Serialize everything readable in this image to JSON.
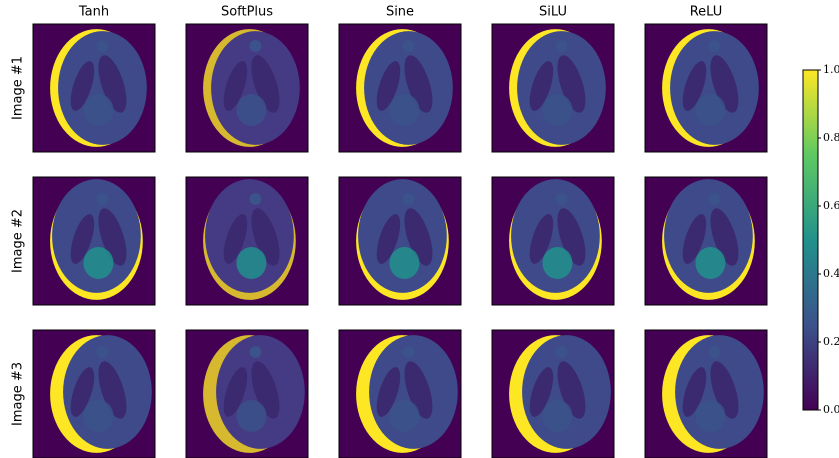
{
  "chart_data": {
    "type": "image-grid",
    "columns": [
      "Tanh",
      "SoftPlus",
      "Sine",
      "SiLU",
      "ReLU"
    ],
    "rows": [
      "Image #1",
      "Image #2",
      "Image #3"
    ],
    "colors": [
      "#440154",
      "#3b528b",
      "#21918c",
      "#5ec962",
      "#fde725"
    ],
    "ylim": [
      0,
      1
    ],
    "yticks": [
      {
        "value": 0,
        "label": "0.0"
      },
      {
        "value": 0.2,
        "label": "0.2"
      },
      {
        "value": 0.4,
        "label": "0.4"
      },
      {
        "value": 0.6,
        "label": "0.6"
      },
      {
        "value": 0.8,
        "label": "0.8"
      },
      {
        "value": 1,
        "label": "1.0"
      }
    ]
  }
}
